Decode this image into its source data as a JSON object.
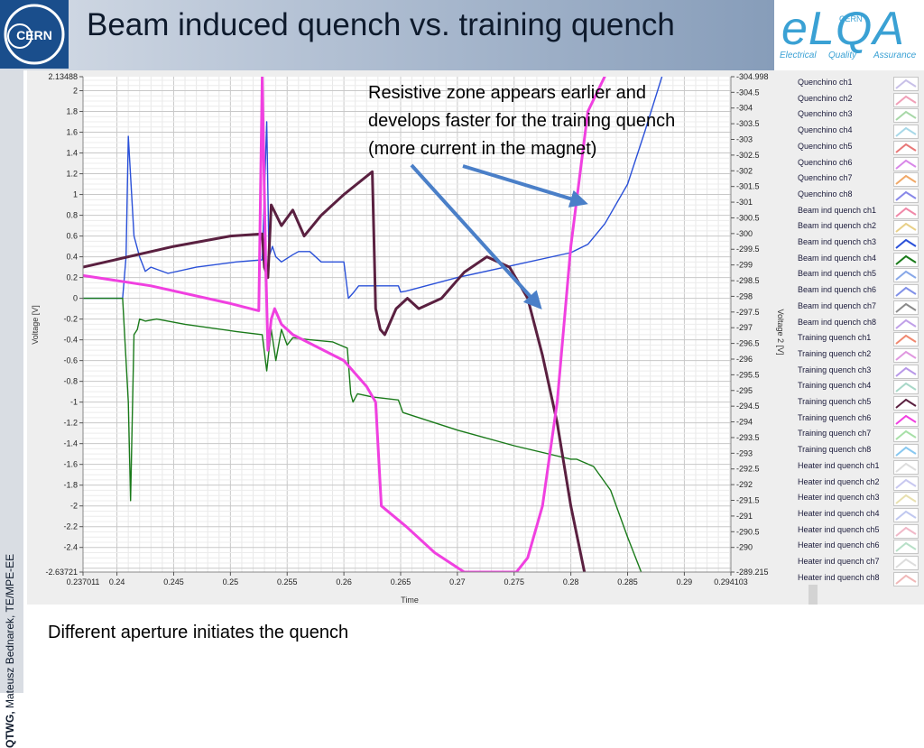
{
  "header": {
    "title": "Beam induced quench vs. training quench",
    "cern_logo_text": "CERN",
    "elqa_logo": "eLQA",
    "elqa_cern": "CERN",
    "elqa_tagline": [
      "Electrical",
      "Quality",
      "Assurance"
    ]
  },
  "sidebar": {
    "bold": "QTWG,",
    "text": " Mateusz Bednarek, TE/MPE-EE"
  },
  "annotation": {
    "lines": [
      "Resistive zone appears earlier and",
      "develops faster for the training quench",
      "(more current in the magnet)"
    ]
  },
  "caption": "Different aperture initiates the quench",
  "legend": {
    "items": [
      {
        "label": "Quenchino ch1",
        "color": "#c8c0e8"
      },
      {
        "label": "Quenchino ch2",
        "color": "#f0a0b8"
      },
      {
        "label": "Quenchino ch3",
        "color": "#a8d8a8"
      },
      {
        "label": "Quenchino ch4",
        "color": "#a8d8e8"
      },
      {
        "label": "Quenchino ch5",
        "color": "#e87878"
      },
      {
        "label": "Quenchino ch6",
        "color": "#d888e8"
      },
      {
        "label": "Quenchino ch7",
        "color": "#f0a868"
      },
      {
        "label": "Quenchino ch8",
        "color": "#8888e8"
      },
      {
        "label": "Beam ind quench ch1",
        "color": "#f088a8"
      },
      {
        "label": "Beam ind quench ch2",
        "color": "#e8d088"
      },
      {
        "label": "Beam ind quench ch3",
        "color": "#2a50d8"
      },
      {
        "label": "Beam ind quench ch4",
        "color": "#1a7a1a"
      },
      {
        "label": "Beam ind quench ch5",
        "color": "#88a8e8"
      },
      {
        "label": "Beam ind quench ch6",
        "color": "#8090e8"
      },
      {
        "label": "Beam ind quench ch7",
        "color": "#8a8a8a"
      },
      {
        "label": "Beam ind quench ch8",
        "color": "#c0a0e8"
      },
      {
        "label": "Training quench ch1",
        "color": "#f08870"
      },
      {
        "label": "Training quench ch2",
        "color": "#e098e0"
      },
      {
        "label": "Training quench ch3",
        "color": "#b898e8"
      },
      {
        "label": "Training quench ch4",
        "color": "#a8d8c8"
      },
      {
        "label": "Training quench ch5",
        "color": "#5a2040"
      },
      {
        "label": "Training quench ch6",
        "color": "#f040e0"
      },
      {
        "label": "Training quench ch7",
        "color": "#a8e0a8"
      },
      {
        "label": "Training quench ch8",
        "color": "#88c8f0"
      },
      {
        "label": "Heater ind quench ch1",
        "color": "#dddddd"
      },
      {
        "label": "Heater ind quench ch2",
        "color": "#c8c8f0"
      },
      {
        "label": "Heater ind quench ch3",
        "color": "#e8e0b0"
      },
      {
        "label": "Heater ind quench ch4",
        "color": "#c0c8f0"
      },
      {
        "label": "Heater ind quench ch5",
        "color": "#f0b8c8"
      },
      {
        "label": "Heater ind quench ch6",
        "color": "#b8e0c8"
      },
      {
        "label": "Heater ind quench ch7",
        "color": "#dddddd"
      },
      {
        "label": "Heater ind quench ch8",
        "color": "#f0b8b8"
      }
    ]
  },
  "chart_data": {
    "type": "line",
    "xlabel": "Time",
    "ylabel": "Voltage [V]",
    "y2label": "Voltage 2 [V]",
    "xlim": [
      0.237011,
      0.294103
    ],
    "ylim": [
      -2.63721,
      2.13488
    ],
    "y2lim": [
      -289.215,
      -304.998
    ],
    "x_ticks": [
      "0.237011",
      "0.24",
      "0.245",
      "0.25",
      "0.255",
      "0.26",
      "0.265",
      "0.27",
      "0.275",
      "0.28",
      "0.285",
      "0.29",
      "0.294103"
    ],
    "y_ticks": [
      "2.13488",
      "2",
      "1.8",
      "1.6",
      "1.4",
      "1.2",
      "1",
      "0.8",
      "0.6",
      "0.4",
      "0.2",
      "0",
      "-0.2",
      "-0.4",
      "-0.6",
      "-0.8",
      "-1",
      "-1.2",
      "-1.4",
      "-1.6",
      "-1.8",
      "-2",
      "-2.2",
      "-2.4",
      "-2.63721"
    ],
    "y2_ticks": [
      "-304.998",
      "-304.5",
      "-304",
      "-303.5",
      "-303",
      "-302.5",
      "-302",
      "-301.5",
      "-301",
      "-300.5",
      "-300",
      "-299.5",
      "-299",
      "-298.5",
      "-298",
      "-297.5",
      "-297",
      "-296.5",
      "-296",
      "-295.5",
      "-295",
      "-294.5",
      "-294",
      "-293.5",
      "-293",
      "-292.5",
      "-292",
      "-291.5",
      "-291",
      "-290.5",
      "-290",
      "-289.215"
    ],
    "grid": true,
    "series": [
      {
        "name": "Beam ind quench ch3",
        "color": "#2a50d8",
        "x": [
          0.237011,
          0.2405,
          0.2408,
          0.241,
          0.2415,
          0.242,
          0.2425,
          0.243,
          0.2445,
          0.247,
          0.2505,
          0.2528,
          0.2532,
          0.2534,
          0.2537,
          0.254,
          0.2545,
          0.2555,
          0.256,
          0.257,
          0.258,
          0.26,
          0.2604,
          0.2608,
          0.2613,
          0.263,
          0.2648,
          0.265,
          0.2655,
          0.27,
          0.275,
          0.28,
          0.2815,
          0.283,
          0.285,
          0.2865,
          0.2885
        ],
        "y": [
          0,
          0,
          0.4,
          1.56,
          0.6,
          0.4,
          0.26,
          0.3,
          0.24,
          0.3,
          0.35,
          0.37,
          1.7,
          0.4,
          0.5,
          0.4,
          0.35,
          0.42,
          0.45,
          0.45,
          0.35,
          0.35,
          0.0,
          0.05,
          0.12,
          0.12,
          0.12,
          0.06,
          0.07,
          0.2,
          0.32,
          0.44,
          0.52,
          0.72,
          1.1,
          1.6,
          2.3
        ]
      },
      {
        "name": "Beam ind quench ch4",
        "color": "#1a7a1a",
        "x": [
          0.237011,
          0.2405,
          0.241,
          0.2412,
          0.2415,
          0.2418,
          0.242,
          0.2425,
          0.2435,
          0.246,
          0.2505,
          0.2528,
          0.2532,
          0.2536,
          0.254,
          0.2545,
          0.255,
          0.2555,
          0.257,
          0.259,
          0.2603,
          0.2606,
          0.2608,
          0.2612,
          0.2625,
          0.2648,
          0.2652,
          0.27,
          0.275,
          0.28,
          0.2805,
          0.282,
          0.2835,
          0.285,
          0.2862
        ],
        "y": [
          0,
          0,
          -1.0,
          -1.95,
          -0.35,
          -0.3,
          -0.2,
          -0.22,
          -0.2,
          -0.25,
          -0.32,
          -0.35,
          -0.7,
          -0.3,
          -0.6,
          -0.3,
          -0.45,
          -0.38,
          -0.4,
          -0.42,
          -0.48,
          -0.92,
          -1.0,
          -0.92,
          -0.95,
          -0.98,
          -1.1,
          -1.27,
          -1.42,
          -1.55,
          -1.55,
          -1.62,
          -1.85,
          -2.3,
          -2.63721
        ]
      },
      {
        "name": "Training quench ch5",
        "color": "#5a2040",
        "x": [
          0.237011,
          0.245,
          0.25,
          0.2528,
          0.253,
          0.2533,
          0.2536,
          0.2545,
          0.2555,
          0.2565,
          0.258,
          0.26,
          0.2625,
          0.2628,
          0.2632,
          0.2636,
          0.2646,
          0.2656,
          0.2666,
          0.2686,
          0.2706,
          0.2726,
          0.2746,
          0.2762,
          0.2775,
          0.2788,
          0.28,
          0.2812
        ],
        "y": [
          0.3,
          0.5,
          0.6,
          0.62,
          0.3,
          0.2,
          0.9,
          0.7,
          0.85,
          0.6,
          0.8,
          1.0,
          1.22,
          -0.1,
          -0.3,
          -0.35,
          -0.1,
          0.0,
          -0.1,
          0.0,
          0.25,
          0.4,
          0.3,
          0.0,
          -0.55,
          -1.2,
          -2.0,
          -2.63721
        ]
      },
      {
        "name": "Training quench ch6",
        "color": "#f040e0",
        "x": [
          0.237011,
          0.243,
          0.25,
          0.2525,
          0.2528,
          0.2531,
          0.2533,
          0.2536,
          0.2539,
          0.2545,
          0.2555,
          0.26,
          0.262,
          0.2628,
          0.2633,
          0.2655,
          0.268,
          0.2706,
          0.2742,
          0.2752,
          0.2762,
          0.2775,
          0.2788,
          0.28,
          0.2815,
          0.283
        ],
        "y": [
          0.22,
          0.12,
          -0.05,
          -0.12,
          2.14,
          0.4,
          -0.5,
          -0.2,
          -0.1,
          -0.25,
          -0.35,
          -0.6,
          -0.85,
          -1.0,
          -2.0,
          -2.2,
          -2.45,
          -2.63721,
          -2.63721,
          -2.63721,
          -2.5,
          -2.0,
          -1.0,
          0.5,
          1.8,
          2.14
        ]
      }
    ]
  }
}
